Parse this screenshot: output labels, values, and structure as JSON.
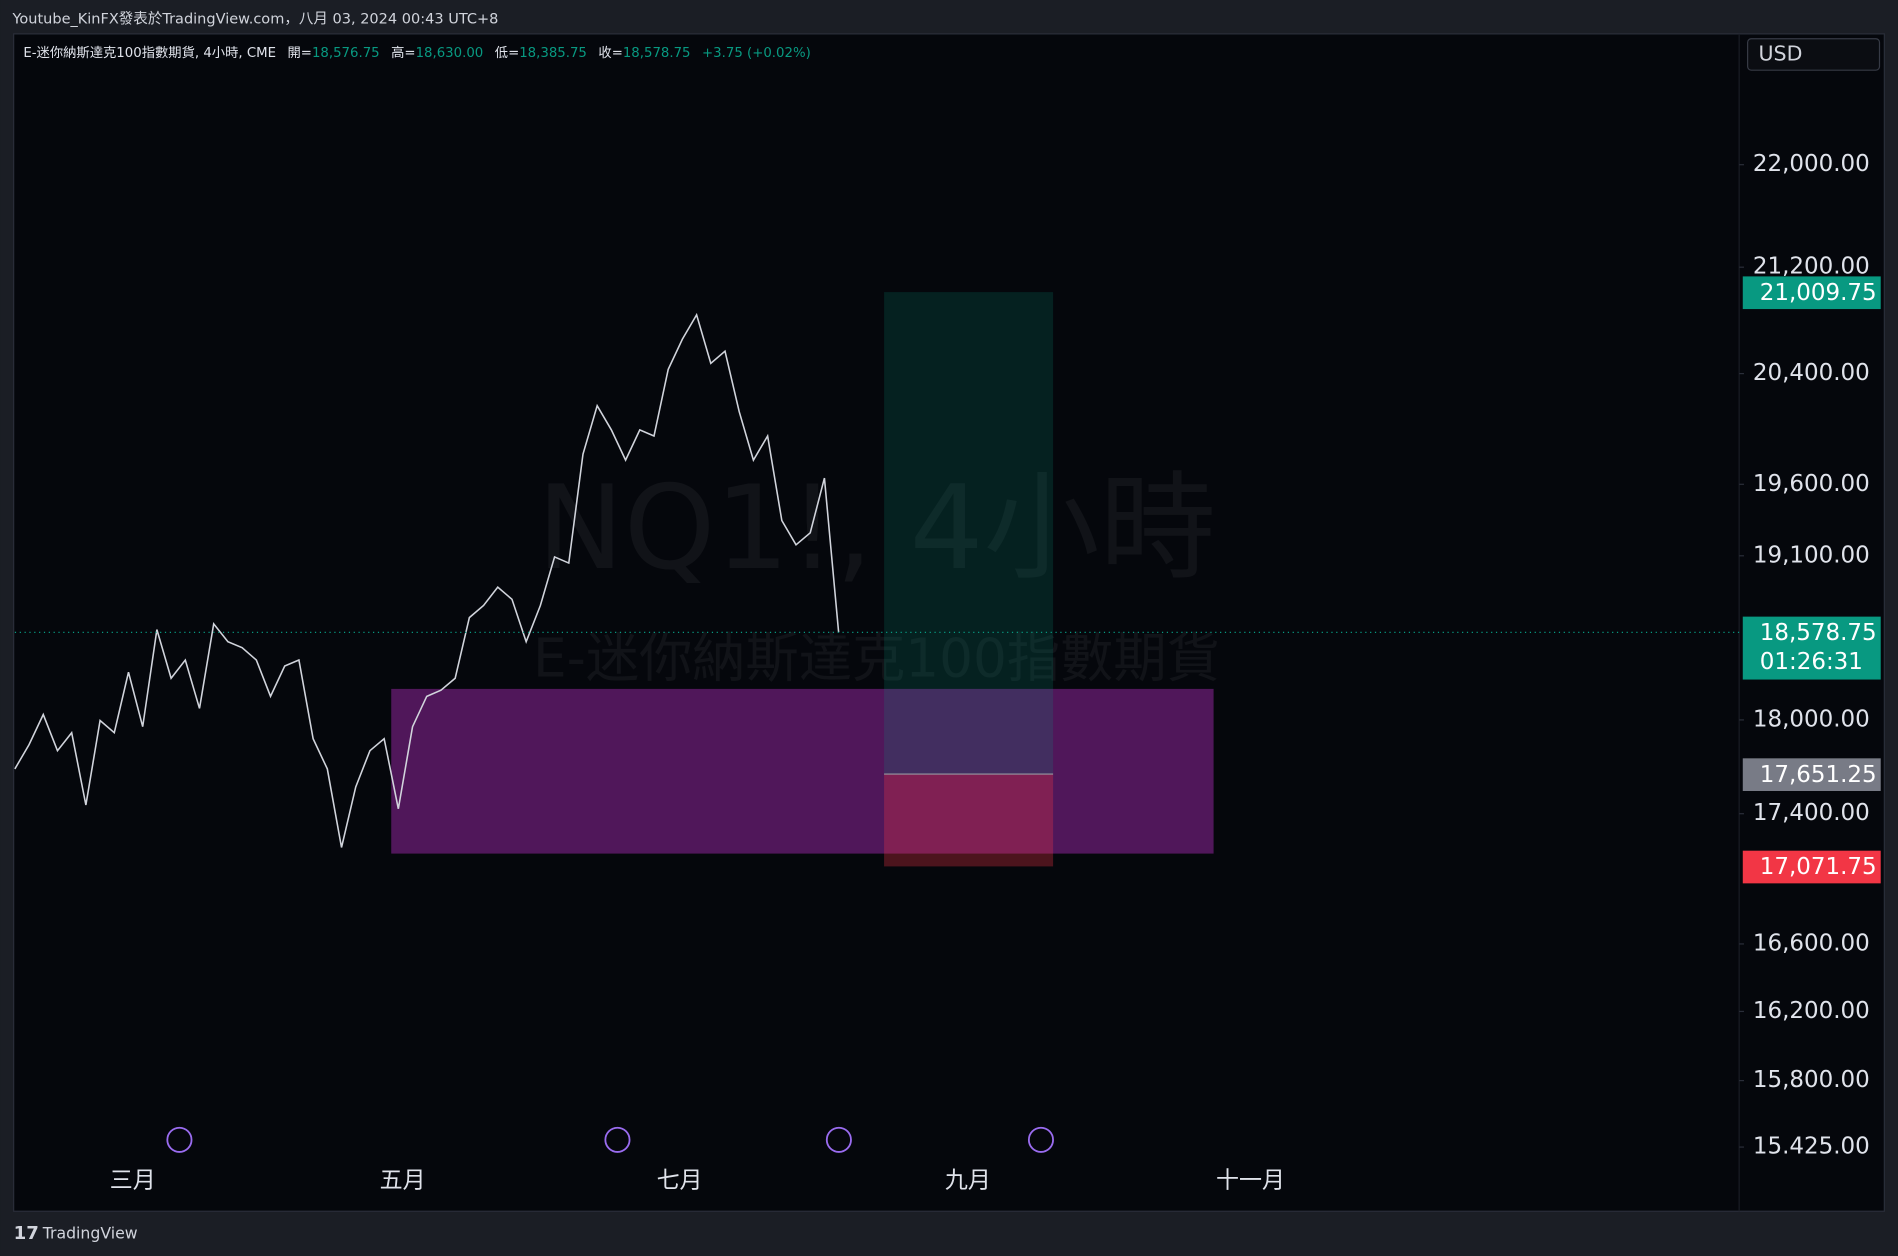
{
  "header": "Youtube_KinFX發表於TradingView.com，八月 03, 2024 00:43 UTC+8",
  "footer": "TradingView",
  "currency": "USD",
  "chart_data": {
    "type": "line",
    "legend": {
      "symbol": "E-迷你納斯達克100指數期貨, 4小時, CME",
      "items": [
        {
          "label": "開=",
          "value": "18,576.75"
        },
        {
          "label": "高=",
          "value": "18,630.00"
        },
        {
          "label": "低=",
          "value": "18,385.75"
        },
        {
          "label": "收=",
          "value": "18,578.75"
        }
      ],
      "change": "+3.75 (+0.02%)"
    },
    "watermark": [
      "NQ1!, 4小時",
      "E-迷你納斯達克100指數期貨"
    ],
    "values": [
      17684,
      17840,
      18035,
      17801,
      17917,
      17455,
      17996,
      17917,
      18313,
      17956,
      18597,
      18273,
      18394,
      18075,
      18636,
      18516,
      18476,
      18394,
      18154,
      18354,
      18394,
      17878,
      17684,
      17189,
      17569,
      17801,
      17878,
      17431,
      17956,
      18154,
      18194,
      18273,
      18678,
      18760,
      18885,
      18802,
      18516,
      18760,
      19092,
      19050,
      19815,
      20165,
      19989,
      19772,
      19989,
      19945,
      20431,
      20656,
      20838,
      20476,
      20566,
      20121,
      19772,
      19945,
      19345,
      19176,
      19259,
      19644,
      18578.75
    ],
    "color": "#d1d4dc",
    "xlim": [
      0,
      122
    ],
    "xticks": [
      {
        "value": 8.3,
        "label": "三月"
      },
      {
        "value": 27.3,
        "label": "五月"
      },
      {
        "value": 46.8,
        "label": "七月"
      },
      {
        "value": 67.1,
        "label": "九月"
      },
      {
        "value": 87.0,
        "label": "十一月"
      }
    ],
    "ylim": [
      15078,
      23045
    ],
    "log_scale": true,
    "yticks": [
      {
        "value": 22000,
        "label": "22,000.00"
      },
      {
        "value": 21200,
        "label": "21,200.00"
      },
      {
        "value": 20400,
        "label": "20,400.00"
      },
      {
        "value": 19600,
        "label": "19,600.00"
      },
      {
        "value": 19100,
        "label": "19,100.00"
      },
      {
        "value": 18000,
        "label": "18,000.00"
      },
      {
        "value": 17400,
        "label": "17,400.00"
      },
      {
        "value": 16600,
        "label": "16,600.00"
      },
      {
        "value": 16200,
        "label": "16,200.00"
      },
      {
        "value": 15800,
        "label": "15,800.00"
      },
      {
        "value": 15425,
        "label": "15.425.00"
      }
    ],
    "zone": {
      "x": [
        26.5,
        84.4
      ],
      "top": 18203,
      "bottom": 17151,
      "color": "#54185f"
    },
    "position": {
      "x": [
        61.2,
        73.1
      ],
      "target": 21009.75,
      "entry": 17651.25,
      "stop": 17071.75
    },
    "price_tags": [
      {
        "value": 21009.75,
        "label": "21,009.75",
        "color": "#089981"
      },
      {
        "value": 18578.75,
        "label": "18,578.75",
        "color": "#089981",
        "countdown": "01:26:31"
      },
      {
        "value": 17651.25,
        "label": "17,651.25",
        "color": "#787b86"
      },
      {
        "value": 17071.75,
        "label": "17,071.75",
        "color": "#f23645"
      }
    ]
  }
}
